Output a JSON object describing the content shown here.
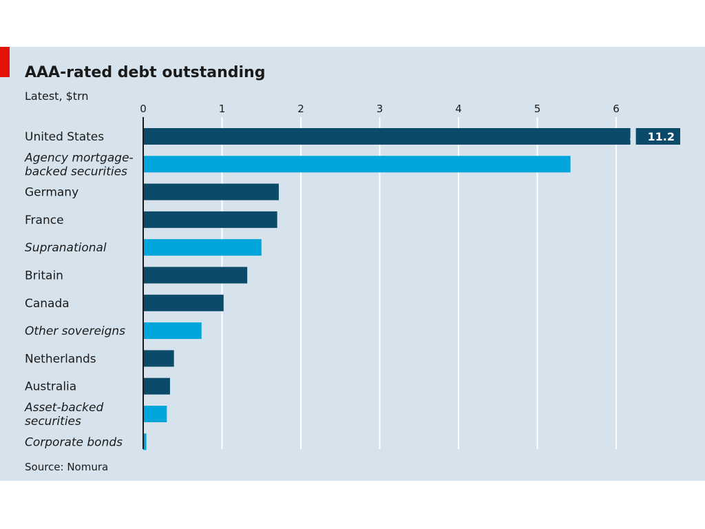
{
  "chart_data": {
    "type": "bar",
    "orientation": "horizontal",
    "title": "AAA-rated debt outstanding",
    "subtitle": "Latest, $trn",
    "source": "Source: Nomura",
    "xlim": [
      0,
      6.8
    ],
    "xticks": [
      "0",
      "1",
      "2",
      "3",
      "4",
      "5",
      "6"
    ],
    "grid": true,
    "categories": [
      {
        "label": "United States",
        "value": 11.2,
        "value_label": "11.2",
        "axis_break": true,
        "style": "dark",
        "italic": false
      },
      {
        "label": "Agency mortgage-backed securities",
        "lines": [
          "Agency mortgage-",
          "backed securities"
        ],
        "value": 5.42,
        "style": "light",
        "italic": true
      },
      {
        "label": "Germany",
        "value": 1.72,
        "style": "dark",
        "italic": false
      },
      {
        "label": "France",
        "value": 1.7,
        "style": "dark",
        "italic": false
      },
      {
        "label": "Supranational",
        "value": 1.5,
        "style": "light",
        "italic": true
      },
      {
        "label": "Britain",
        "value": 1.32,
        "style": "dark",
        "italic": false
      },
      {
        "label": "Canada",
        "value": 1.02,
        "style": "dark",
        "italic": false
      },
      {
        "label": "Other sovereigns",
        "value": 0.74,
        "style": "light",
        "italic": true
      },
      {
        "label": "Netherlands",
        "value": 0.39,
        "style": "dark",
        "italic": false
      },
      {
        "label": "Australia",
        "value": 0.34,
        "style": "dark",
        "italic": false
      },
      {
        "label": "Asset-backed securities",
        "lines": [
          "Asset-backed",
          "securities"
        ],
        "value": 0.3,
        "style": "light",
        "italic": true
      },
      {
        "label": "Corporate bonds",
        "value": 0.04,
        "style": "light",
        "italic": true
      }
    ],
    "colors": {
      "panel_bg": "#d6e3ec",
      "dark_bar": "#0b4a68",
      "light_bar": "#00a5db",
      "gridline": "#ffffff",
      "axis": "#1a1a1a",
      "accent": "#e3120b"
    }
  }
}
